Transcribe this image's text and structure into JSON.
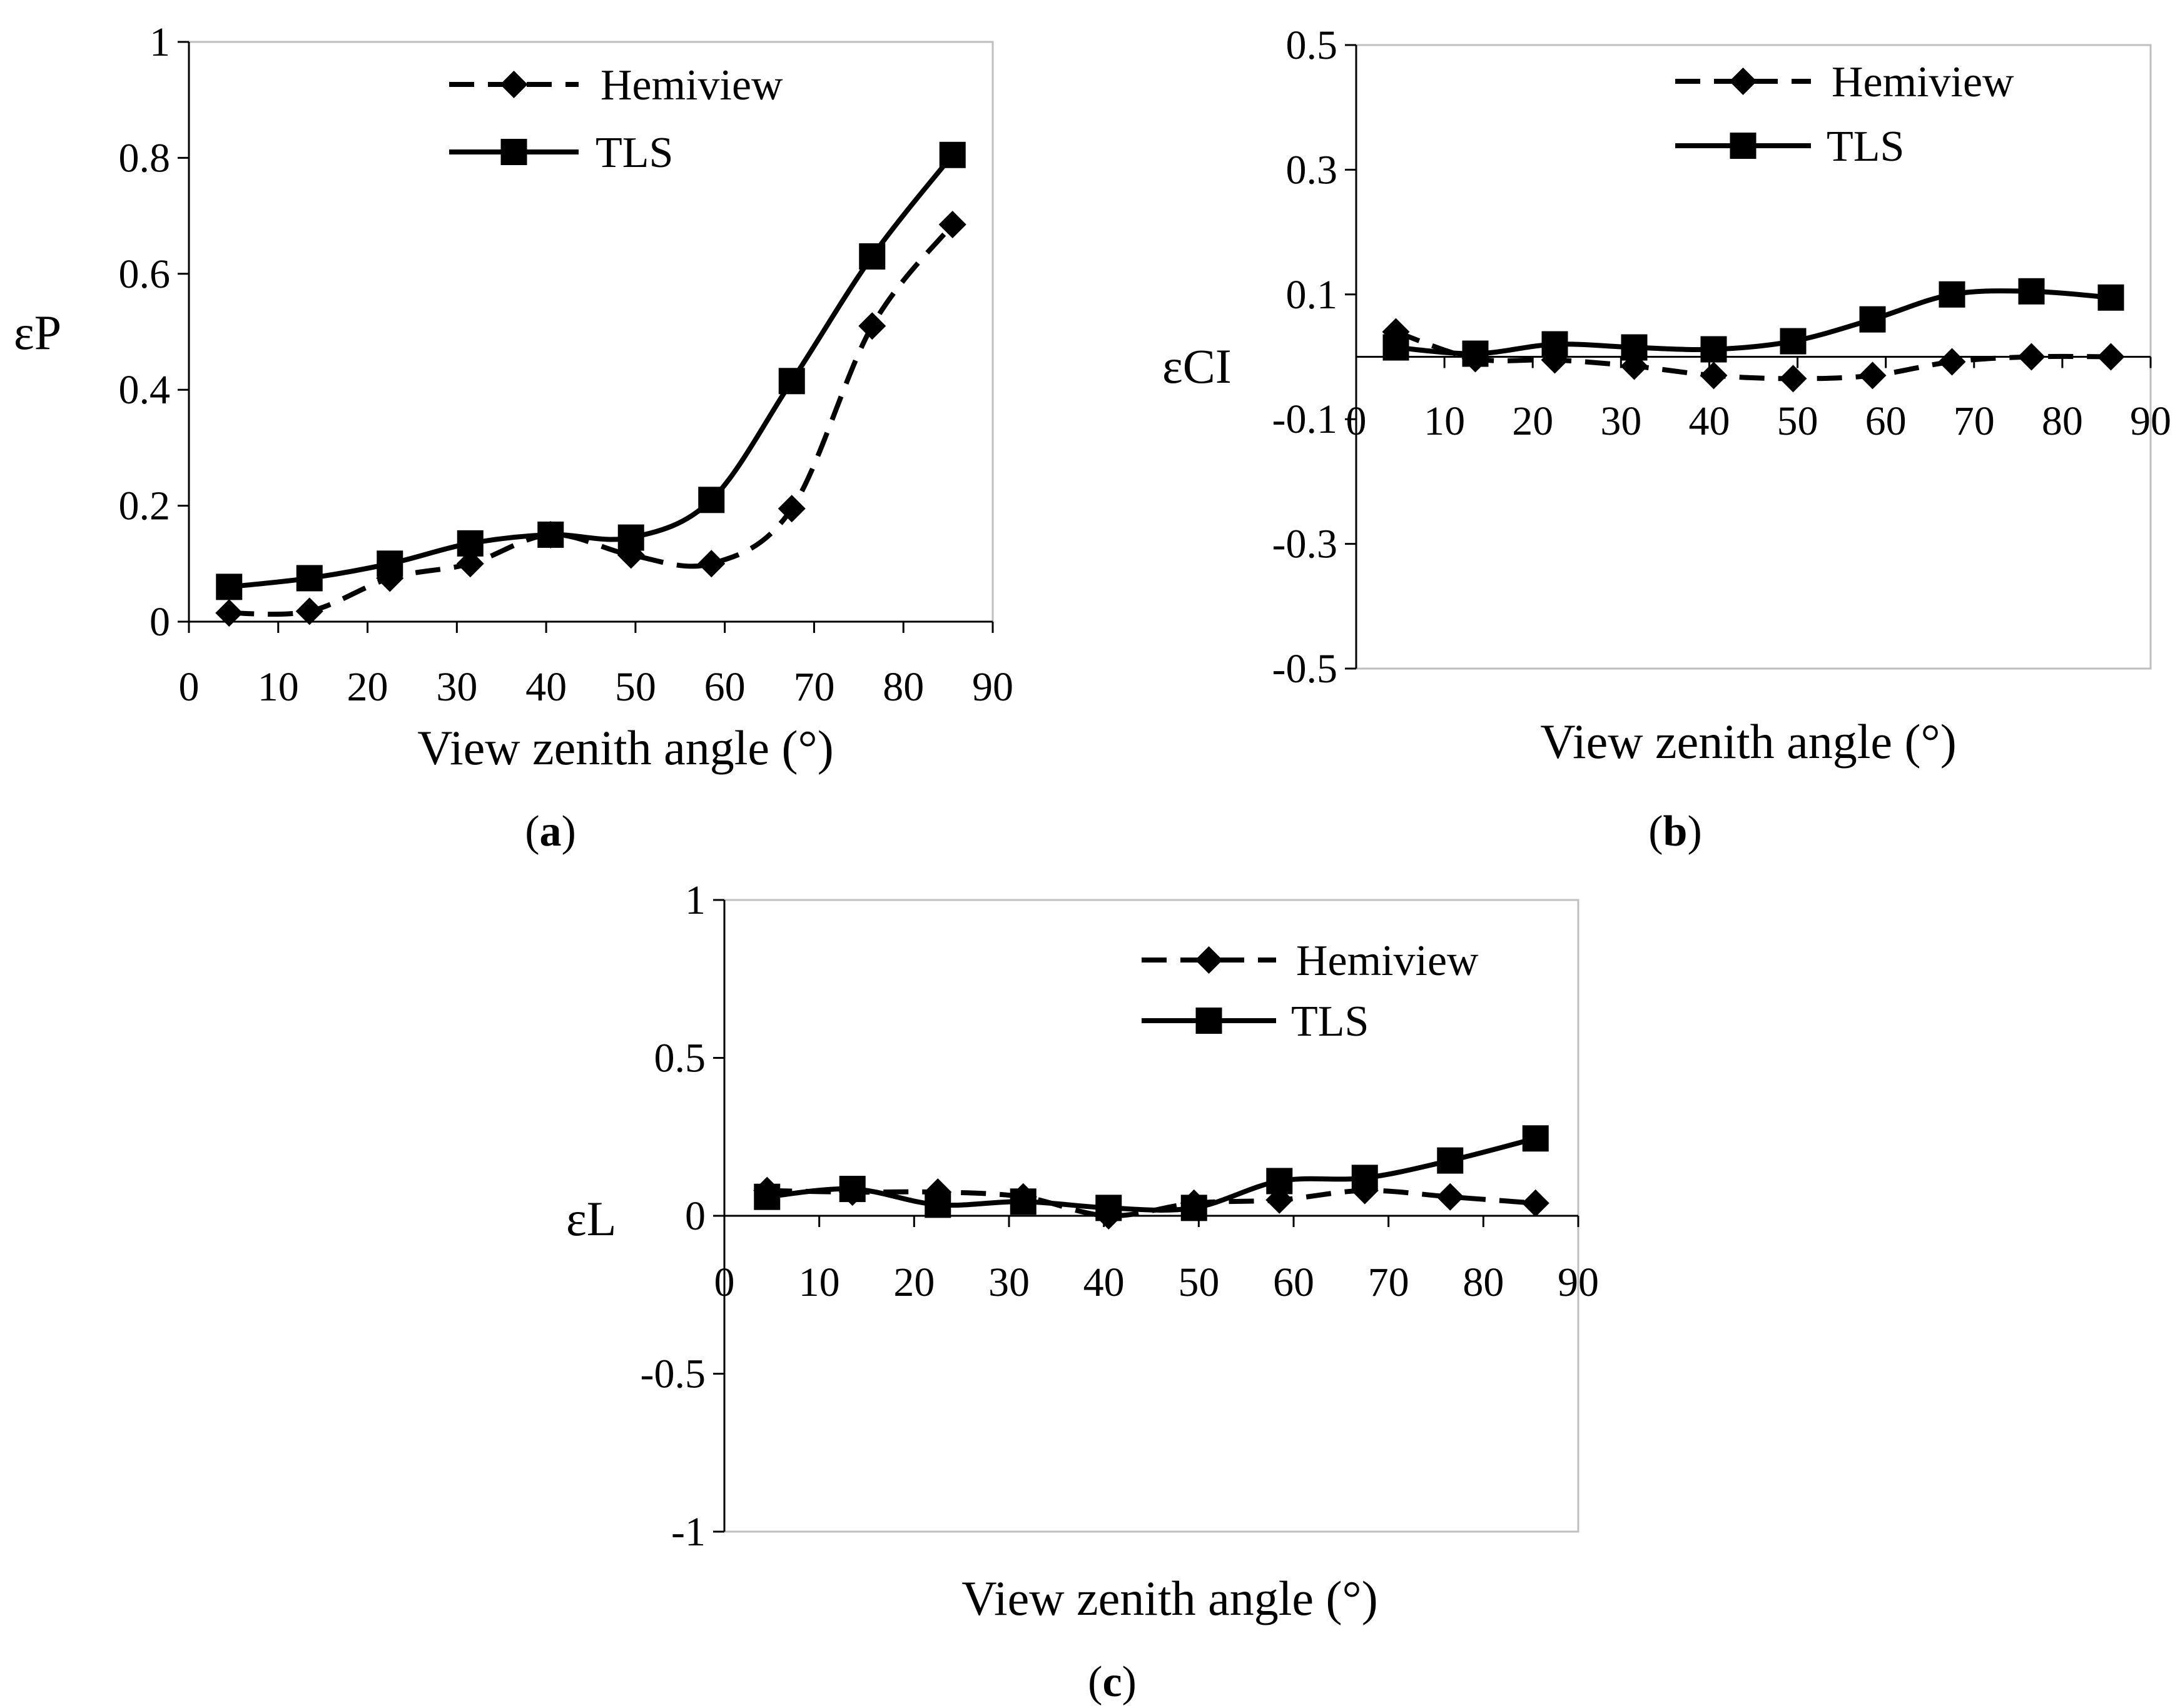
{
  "legend": {
    "hemiview_label": "Hemiview",
    "tls_label": "TLS"
  },
  "colors": {
    "line": "#000000",
    "frame": "#bfbfbf",
    "background": "#ffffff"
  },
  "chart_data": [
    {
      "id": "a",
      "type": "line",
      "panel_label": "a",
      "xlabel": "View zenith angle (°)",
      "ylabel": "εP",
      "xlim": [
        0,
        90
      ],
      "ylim": [
        0,
        1
      ],
      "xticks": [
        "0",
        "10",
        "20",
        "30",
        "40",
        "50",
        "60",
        "70",
        "80",
        "90"
      ],
      "yticks": [
        "0",
        "0.2",
        "0.4",
        "0.6",
        "0.8",
        "1"
      ],
      "x": [
        4.5,
        13.5,
        22.5,
        31.5,
        40.5,
        49.5,
        58.5,
        67.5,
        76.5,
        85.5
      ],
      "series": [
        {
          "name": "Hemiview",
          "style": "dashed",
          "marker": "diamond",
          "values": [
            0.015,
            0.018,
            0.075,
            0.1,
            0.15,
            0.115,
            0.1,
            0.195,
            0.51,
            0.685
          ]
        },
        {
          "name": "TLS",
          "style": "solid",
          "marker": "square",
          "values": [
            0.06,
            0.075,
            0.1,
            0.135,
            0.15,
            0.145,
            0.21,
            0.415,
            0.63,
            0.805
          ]
        }
      ]
    },
    {
      "id": "b",
      "type": "line",
      "panel_label": "b",
      "xlabel": "View zenith angle (°)",
      "ylabel": "εCI",
      "xlim": [
        0,
        90
      ],
      "ylim": [
        -0.5,
        0.5
      ],
      "xticks": [
        "0",
        "10",
        "20",
        "30",
        "40",
        "50",
        "60",
        "70",
        "80",
        "90"
      ],
      "yticks": [
        "-0.5",
        "-0.3",
        "-0.1",
        "0.1",
        "0.3",
        "0.5"
      ],
      "x": [
        4.5,
        13.5,
        22.5,
        31.5,
        40.5,
        49.5,
        58.5,
        67.5,
        76.5,
        85.5
      ],
      "series": [
        {
          "name": "Hemiview",
          "style": "dashed",
          "marker": "diamond",
          "values": [
            0.04,
            -0.003,
            -0.005,
            -0.015,
            -0.03,
            -0.035,
            -0.03,
            -0.008,
            0.0,
            0.0
          ]
        },
        {
          "name": "TLS",
          "style": "solid",
          "marker": "square",
          "values": [
            0.015,
            0.005,
            0.02,
            0.015,
            0.012,
            0.025,
            0.06,
            0.1,
            0.105,
            0.095
          ]
        }
      ]
    },
    {
      "id": "c",
      "type": "line",
      "panel_label": "c",
      "xlabel": "View zenith angle (°)",
      "ylabel": "εL",
      "xlim": [
        0,
        90
      ],
      "ylim": [
        -1,
        1
      ],
      "xticks": [
        "0",
        "10",
        "20",
        "30",
        "40",
        "50",
        "60",
        "70",
        "80",
        "90"
      ],
      "yticks": [
        "-1",
        "-0.5",
        "0",
        "0.5",
        "1"
      ],
      "x": [
        4.5,
        13.5,
        22.5,
        31.5,
        40.5,
        49.5,
        58.5,
        67.5,
        76.5,
        85.5
      ],
      "series": [
        {
          "name": "Hemiview",
          "style": "dashed",
          "marker": "diamond",
          "values": [
            0.08,
            0.075,
            0.075,
            0.06,
            0.0,
            0.04,
            0.05,
            0.08,
            0.06,
            0.04
          ]
        },
        {
          "name": "TLS",
          "style": "solid",
          "marker": "square",
          "values": [
            0.06,
            0.085,
            0.035,
            0.045,
            0.025,
            0.025,
            0.11,
            0.12,
            0.175,
            0.245
          ]
        }
      ]
    }
  ]
}
